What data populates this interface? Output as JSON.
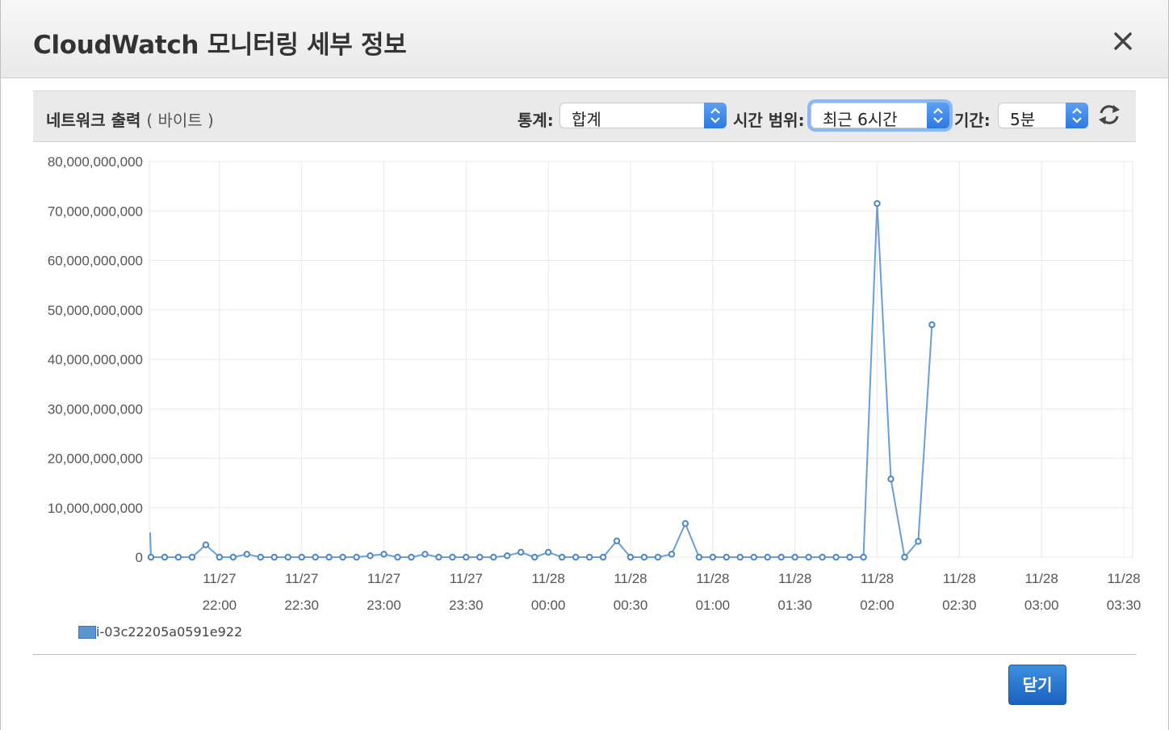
{
  "dialog": {
    "title": "CloudWatch 모니터링 세부 정보",
    "close_icon": "close-icon"
  },
  "toolbar": {
    "metric_title": "네트워크 출력",
    "metric_unit": "( 바이트 )",
    "stat_label": "통계:",
    "stat_value": "합계",
    "range_label": "시간 범위:",
    "range_value": "최근 6시간",
    "period_label": "기간:",
    "period_value": "5분",
    "refresh_icon": "refresh-icon"
  },
  "footer": {
    "close_button": "닫기"
  },
  "colors": {
    "series": "#6b9fd4",
    "marker_stroke": "#4a86c8",
    "accent": "#2d7ae0"
  },
  "chart_data": {
    "type": "line",
    "title": "",
    "ylim": [
      0,
      80000000000
    ],
    "y_ticks": [
      {
        "value": 0,
        "label": "0"
      },
      {
        "value": 10000000000,
        "label": "10,000,000,000"
      },
      {
        "value": 20000000000,
        "label": "20,000,000,000"
      },
      {
        "value": 30000000000,
        "label": "30,000,000,000"
      },
      {
        "value": 40000000000,
        "label": "40,000,000,000"
      },
      {
        "value": 50000000000,
        "label": "50,000,000,000"
      },
      {
        "value": 60000000000,
        "label": "60,000,000,000"
      },
      {
        "value": 70000000000,
        "label": "70,000,000,000"
      },
      {
        "value": 80000000000,
        "label": "80,000,000,000"
      }
    ],
    "x_ticks": [
      {
        "date": "11/27",
        "time": "22:00"
      },
      {
        "date": "11/27",
        "time": "22:30"
      },
      {
        "date": "11/27",
        "time": "23:00"
      },
      {
        "date": "11/27",
        "time": "23:30"
      },
      {
        "date": "11/28",
        "time": "00:00"
      },
      {
        "date": "11/28",
        "time": "00:30"
      },
      {
        "date": "11/28",
        "time": "01:00"
      },
      {
        "date": "11/28",
        "time": "01:30"
      },
      {
        "date": "11/28",
        "time": "02:00"
      },
      {
        "date": "11/28",
        "time": "02:30"
      },
      {
        "date": "11/28",
        "time": "03:00"
      },
      {
        "date": "11/28",
        "time": "03:30"
      }
    ],
    "grid": true,
    "legend_position": "bottom-left",
    "series": [
      {
        "name": "i-03c22205a0591e922",
        "x": [
          "21:35",
          "21:40",
          "21:45",
          "21:50",
          "21:55",
          "22:00",
          "22:05",
          "22:10",
          "22:15",
          "22:20",
          "22:25",
          "22:30",
          "22:35",
          "22:40",
          "22:45",
          "22:50",
          "22:55",
          "23:00",
          "23:05",
          "23:10",
          "23:15",
          "23:20",
          "23:25",
          "23:30",
          "23:35",
          "23:40",
          "23:45",
          "23:50",
          "23:55",
          "00:00",
          "00:05",
          "00:10",
          "00:15",
          "00:20",
          "00:25",
          "00:30",
          "00:35",
          "00:40",
          "00:45",
          "00:50",
          "00:55",
          "01:00",
          "01:05",
          "01:10",
          "01:15",
          "01:20",
          "01:25",
          "01:30",
          "01:35",
          "01:40",
          "01:45",
          "01:50",
          "01:55",
          "02:00",
          "02:05",
          "02:10",
          "02:15",
          "02:20"
        ],
        "values": [
          0,
          0,
          0,
          0,
          2500000000,
          0,
          0,
          600000000,
          0,
          0,
          0,
          0,
          0,
          0,
          0,
          0,
          300000000,
          600000000,
          0,
          0,
          600000000,
          0,
          0,
          0,
          0,
          0,
          300000000,
          1000000000,
          0,
          1000000000,
          0,
          0,
          0,
          0,
          3300000000,
          0,
          0,
          0,
          600000000,
          6800000000,
          0,
          0,
          0,
          0,
          0,
          0,
          0,
          0,
          0,
          0,
          0,
          0,
          0,
          71500000000,
          15800000000,
          0,
          3200000000,
          47000000000
        ]
      }
    ]
  }
}
